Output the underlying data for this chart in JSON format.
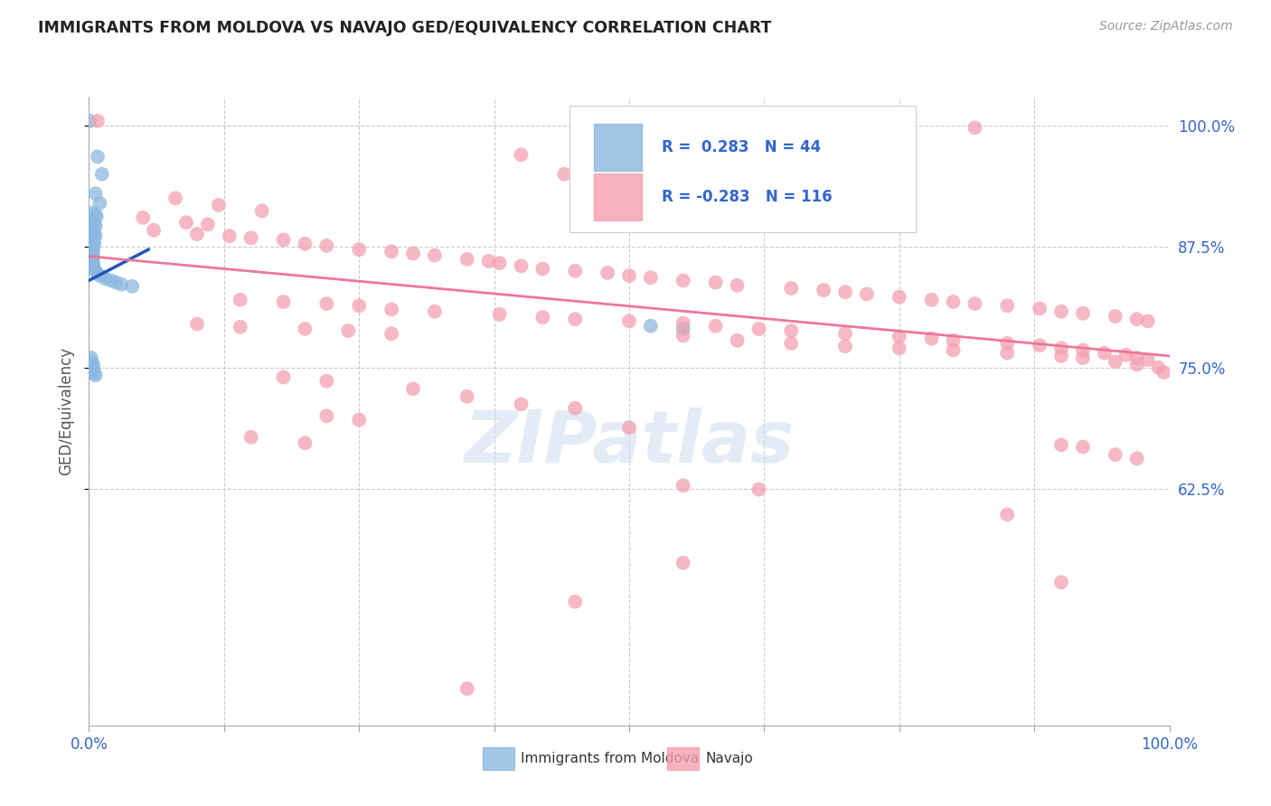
{
  "title": "IMMIGRANTS FROM MOLDOVA VS NAVAJO GED/EQUIVALENCY CORRELATION CHART",
  "source_text": "Source: ZipAtlas.com",
  "ylabel": "GED/Equivalency",
  "ytick_labels": [
    "62.5%",
    "75.0%",
    "87.5%",
    "100.0%"
  ],
  "ytick_values": [
    0.625,
    0.75,
    0.875,
    1.0
  ],
  "legend_label1": "Immigrants from Moldova",
  "legend_label2": "Navajo",
  "blue_color": "#8BB8E0",
  "pink_color": "#F4A0B0",
  "blue_line_color": "#2255BB",
  "pink_line_color": "#EE7799",
  "watermark_color": "#C8D8EE",
  "background_color": "#FFFFFF",
  "grid_color": "#CCCCCC",
  "blue_dots": [
    [
      0.001,
      1.005
    ],
    [
      0.008,
      0.968
    ],
    [
      0.012,
      0.95
    ],
    [
      0.006,
      0.93
    ],
    [
      0.01,
      0.92
    ],
    [
      0.004,
      0.91
    ],
    [
      0.006,
      0.908
    ],
    [
      0.007,
      0.906
    ],
    [
      0.003,
      0.9
    ],
    [
      0.005,
      0.898
    ],
    [
      0.006,
      0.896
    ],
    [
      0.004,
      0.89
    ],
    [
      0.005,
      0.888
    ],
    [
      0.006,
      0.886
    ],
    [
      0.003,
      0.882
    ],
    [
      0.004,
      0.88
    ],
    [
      0.005,
      0.878
    ],
    [
      0.002,
      0.875
    ],
    [
      0.003,
      0.873
    ],
    [
      0.004,
      0.871
    ],
    [
      0.002,
      0.868
    ],
    [
      0.003,
      0.866
    ],
    [
      0.004,
      0.864
    ],
    [
      0.002,
      0.862
    ],
    [
      0.003,
      0.86
    ],
    [
      0.004,
      0.858
    ],
    [
      0.003,
      0.856
    ],
    [
      0.004,
      0.854
    ],
    [
      0.006,
      0.85
    ],
    [
      0.007,
      0.848
    ],
    [
      0.01,
      0.845
    ],
    [
      0.015,
      0.842
    ],
    [
      0.02,
      0.84
    ],
    [
      0.025,
      0.838
    ],
    [
      0.03,
      0.836
    ],
    [
      0.04,
      0.834
    ],
    [
      0.002,
      0.76
    ],
    [
      0.003,
      0.755
    ],
    [
      0.004,
      0.752
    ],
    [
      0.004,
      0.748
    ],
    [
      0.005,
      0.744
    ],
    [
      0.006,
      0.742
    ],
    [
      0.52,
      0.793
    ],
    [
      0.55,
      0.79
    ]
  ],
  "pink_dots": [
    [
      0.008,
      1.005
    ],
    [
      0.62,
      1.005
    ],
    [
      0.82,
      0.998
    ],
    [
      0.4,
      0.97
    ],
    [
      0.44,
      0.95
    ],
    [
      0.08,
      0.925
    ],
    [
      0.12,
      0.918
    ],
    [
      0.16,
      0.912
    ],
    [
      0.05,
      0.905
    ],
    [
      0.09,
      0.9
    ],
    [
      0.11,
      0.898
    ],
    [
      0.06,
      0.892
    ],
    [
      0.1,
      0.888
    ],
    [
      0.13,
      0.886
    ],
    [
      0.15,
      0.884
    ],
    [
      0.18,
      0.882
    ],
    [
      0.2,
      0.878
    ],
    [
      0.22,
      0.876
    ],
    [
      0.25,
      0.872
    ],
    [
      0.28,
      0.87
    ],
    [
      0.3,
      0.868
    ],
    [
      0.32,
      0.866
    ],
    [
      0.35,
      0.862
    ],
    [
      0.37,
      0.86
    ],
    [
      0.38,
      0.858
    ],
    [
      0.4,
      0.855
    ],
    [
      0.42,
      0.852
    ],
    [
      0.45,
      0.85
    ],
    [
      0.48,
      0.848
    ],
    [
      0.5,
      0.845
    ],
    [
      0.52,
      0.843
    ],
    [
      0.55,
      0.84
    ],
    [
      0.58,
      0.838
    ],
    [
      0.6,
      0.835
    ],
    [
      0.65,
      0.832
    ],
    [
      0.68,
      0.83
    ],
    [
      0.7,
      0.828
    ],
    [
      0.72,
      0.826
    ],
    [
      0.75,
      0.823
    ],
    [
      0.78,
      0.82
    ],
    [
      0.8,
      0.818
    ],
    [
      0.82,
      0.816
    ],
    [
      0.85,
      0.814
    ],
    [
      0.88,
      0.811
    ],
    [
      0.9,
      0.808
    ],
    [
      0.92,
      0.806
    ],
    [
      0.95,
      0.803
    ],
    [
      0.97,
      0.8
    ],
    [
      0.98,
      0.798
    ],
    [
      0.14,
      0.82
    ],
    [
      0.18,
      0.818
    ],
    [
      0.22,
      0.816
    ],
    [
      0.25,
      0.814
    ],
    [
      0.28,
      0.81
    ],
    [
      0.32,
      0.808
    ],
    [
      0.38,
      0.805
    ],
    [
      0.42,
      0.802
    ],
    [
      0.45,
      0.8
    ],
    [
      0.5,
      0.798
    ],
    [
      0.55,
      0.796
    ],
    [
      0.58,
      0.793
    ],
    [
      0.62,
      0.79
    ],
    [
      0.65,
      0.788
    ],
    [
      0.7,
      0.785
    ],
    [
      0.75,
      0.782
    ],
    [
      0.78,
      0.78
    ],
    [
      0.8,
      0.778
    ],
    [
      0.85,
      0.775
    ],
    [
      0.88,
      0.773
    ],
    [
      0.9,
      0.77
    ],
    [
      0.92,
      0.768
    ],
    [
      0.94,
      0.765
    ],
    [
      0.96,
      0.763
    ],
    [
      0.97,
      0.76
    ],
    [
      0.98,
      0.758
    ],
    [
      0.1,
      0.795
    ],
    [
      0.14,
      0.792
    ],
    [
      0.2,
      0.79
    ],
    [
      0.24,
      0.788
    ],
    [
      0.28,
      0.785
    ],
    [
      0.55,
      0.783
    ],
    [
      0.6,
      0.778
    ],
    [
      0.65,
      0.775
    ],
    [
      0.7,
      0.772
    ],
    [
      0.75,
      0.77
    ],
    [
      0.8,
      0.768
    ],
    [
      0.85,
      0.765
    ],
    [
      0.9,
      0.762
    ],
    [
      0.92,
      0.76
    ],
    [
      0.95,
      0.756
    ],
    [
      0.97,
      0.753
    ],
    [
      0.99,
      0.75
    ],
    [
      0.995,
      0.745
    ],
    [
      0.18,
      0.74
    ],
    [
      0.22,
      0.736
    ],
    [
      0.3,
      0.728
    ],
    [
      0.35,
      0.72
    ],
    [
      0.4,
      0.712
    ],
    [
      0.45,
      0.708
    ],
    [
      0.22,
      0.7
    ],
    [
      0.25,
      0.696
    ],
    [
      0.5,
      0.688
    ],
    [
      0.15,
      0.678
    ],
    [
      0.2,
      0.672
    ],
    [
      0.9,
      0.67
    ],
    [
      0.92,
      0.668
    ],
    [
      0.95,
      0.66
    ],
    [
      0.97,
      0.656
    ],
    [
      0.55,
      0.628
    ],
    [
      0.62,
      0.624
    ],
    [
      0.85,
      0.598
    ],
    [
      0.55,
      0.548
    ],
    [
      0.9,
      0.528
    ],
    [
      0.45,
      0.508
    ],
    [
      0.35,
      0.418
    ]
  ],
  "blue_trendline_x": [
    0.0,
    0.055
  ],
  "blue_trendline_y": [
    0.84,
    0.872
  ],
  "pink_trendline_x": [
    0.0,
    1.0
  ],
  "pink_trendline_y": [
    0.865,
    0.762
  ],
  "xlim": [
    0.0,
    1.0
  ],
  "ylim": [
    0.38,
    1.03
  ],
  "x_ticks": [
    0.0,
    0.125,
    0.25,
    0.375,
    0.5,
    0.625,
    0.75,
    0.875,
    1.0
  ]
}
